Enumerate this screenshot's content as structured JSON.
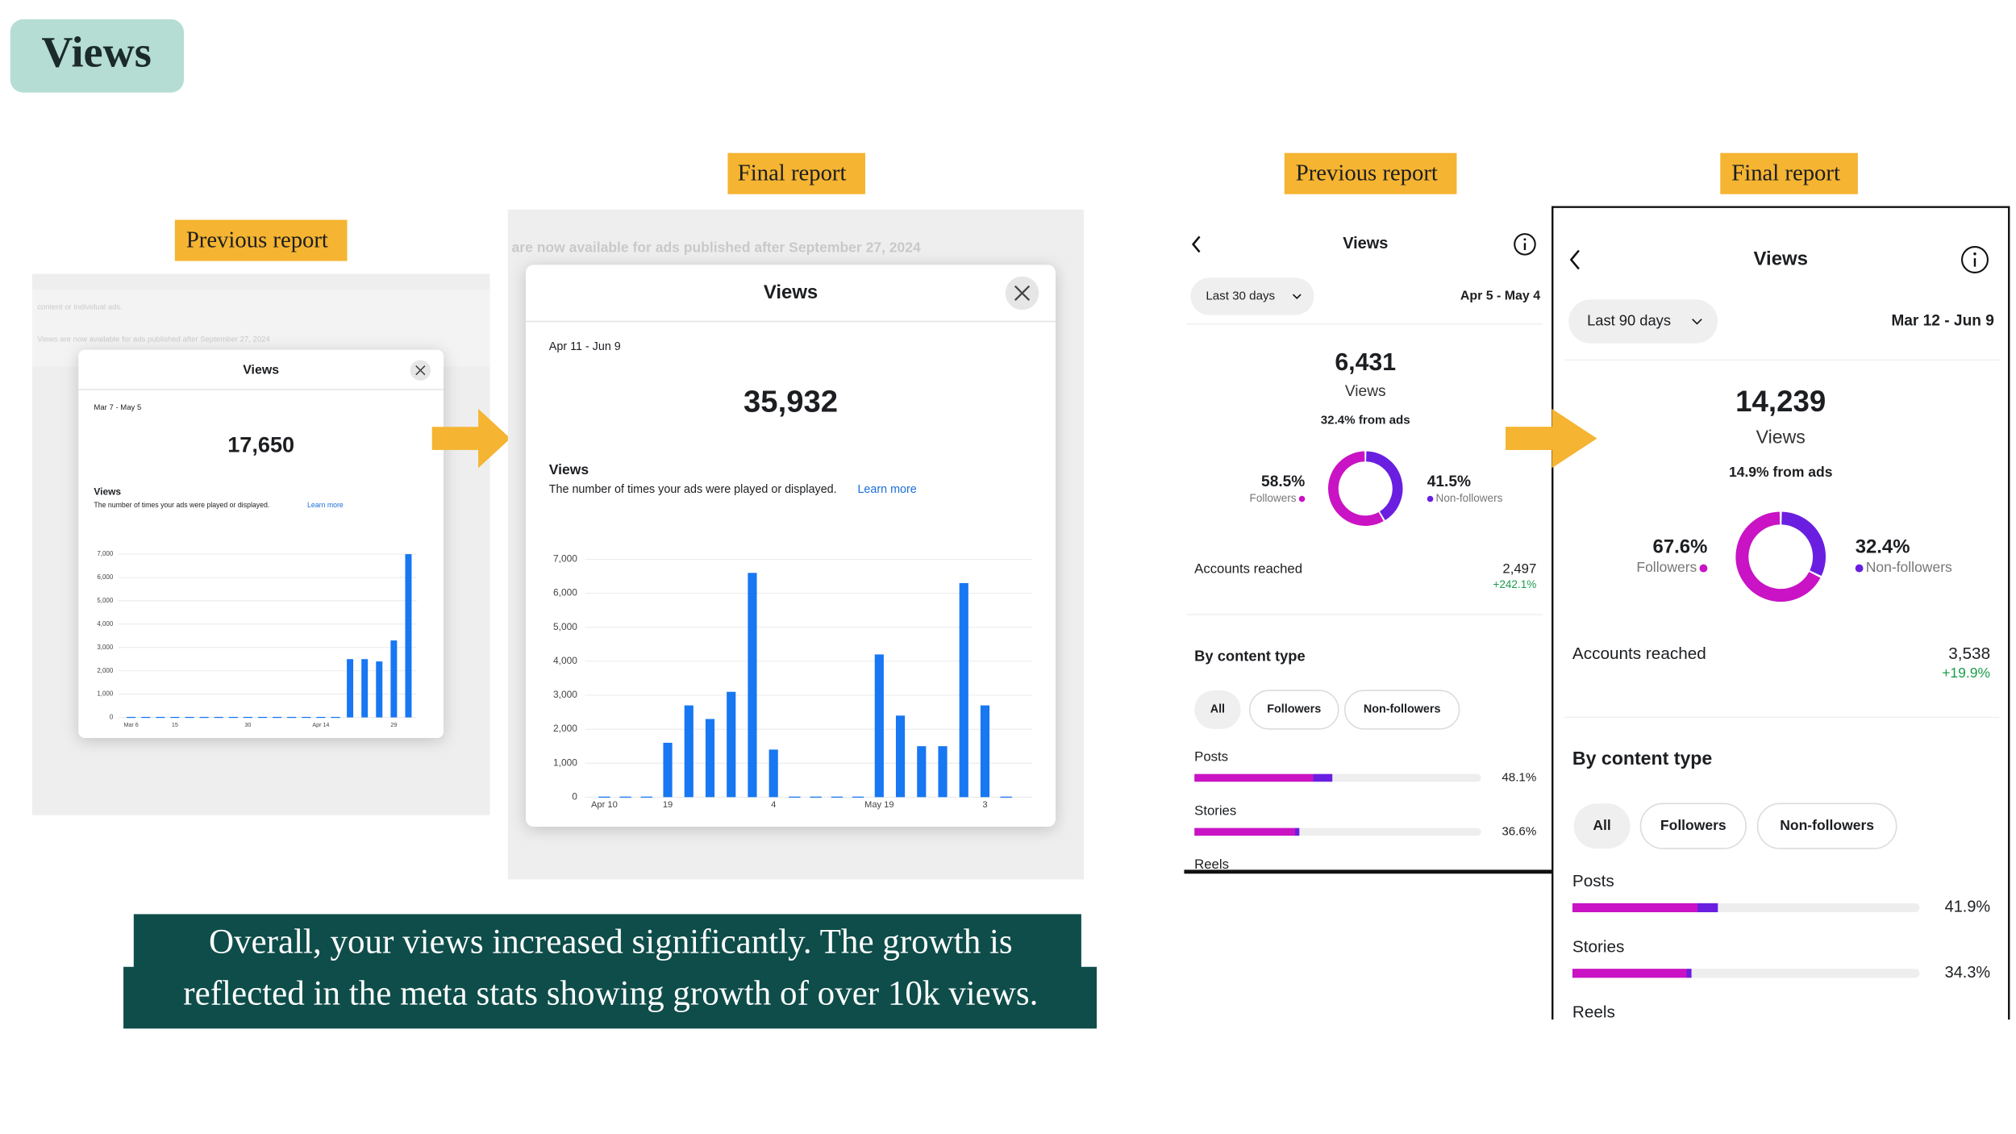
{
  "title": "Views",
  "labels": {
    "ads_previous": "Previous report",
    "ads_final": "Final report",
    "insights_previous": "Previous report",
    "insights_final": "Final report"
  },
  "ads_panels": [
    {
      "background_text": [
        "content or individual ads.",
        "Views are now available for ads published after September 27, 2024"
      ],
      "dialog": {
        "title": "Views",
        "date_range": "Mar 7 - May 5",
        "total": "17,650",
        "metric": "Views",
        "description": "The number of times your ads were played or displayed.",
        "link": "Learn more"
      },
      "chart_data": {
        "type": "bar",
        "categories": [
          "Mar 6",
          null,
          null,
          "15",
          null,
          null,
          null,
          null,
          "30",
          null,
          null,
          null,
          null,
          "Apr 14",
          null,
          null,
          null,
          null,
          "29",
          null
        ],
        "values": [
          0,
          0,
          0,
          0,
          0,
          0,
          0,
          0,
          0,
          0,
          0,
          0,
          0,
          0,
          0,
          2500,
          2500,
          2400,
          3300,
          7000
        ],
        "color": "#1877f2",
        "ylim": [
          0,
          7000
        ],
        "yticks": [
          0,
          {
            "value": 1000,
            "label": "1,000"
          },
          {
            "value": 2000,
            "label": "2,000"
          },
          {
            "value": 3000,
            "label": "3,000"
          },
          {
            "value": 4000,
            "label": "4,000"
          },
          {
            "value": 5000,
            "label": "5,000"
          },
          {
            "value": 6000,
            "label": "6,000"
          },
          {
            "value": 7000,
            "label": "7,000"
          }
        ],
        "grid": true
      }
    },
    {
      "background_text": [
        "are now available for ads published after September 27, 2024"
      ],
      "dialog": {
        "title": "Views",
        "date_range": "Apr 11 - Jun 9",
        "total": "35,932",
        "metric": "Views",
        "description": "The number of times your ads were played or displayed.",
        "link": "Learn more"
      },
      "chart_data": {
        "type": "bar",
        "categories": [
          "Apr 10",
          null,
          null,
          "19",
          null,
          null,
          null,
          null,
          "4",
          null,
          null,
          null,
          null,
          "May 19",
          null,
          null,
          null,
          null,
          "3",
          null
        ],
        "values": [
          0,
          0,
          0,
          1600,
          2700,
          2300,
          3100,
          6600,
          1400,
          0,
          0,
          0,
          0,
          4200,
          2400,
          1500,
          1500,
          6300,
          2700,
          0
        ],
        "color": "#1877f2",
        "ylim": [
          0,
          7000
        ],
        "yticks": [
          0,
          {
            "value": 1000,
            "label": "1,000"
          },
          {
            "value": 2000,
            "label": "2,000"
          },
          {
            "value": 3000,
            "label": "3,000"
          },
          {
            "value": 4000,
            "label": "4,000"
          },
          {
            "value": 5000,
            "label": "5,000"
          },
          {
            "value": 6000,
            "label": "6,000"
          },
          {
            "value": 7000,
            "label": "7,000"
          }
        ],
        "grid": true
      }
    }
  ],
  "insights": [
    {
      "header": "Views",
      "period": "Last 30 days",
      "dates": "Apr 5 - May 4",
      "total": "6,431",
      "total_label": "Views",
      "ads_share": "32.4% from ads",
      "accounts_reached": {
        "label": "Accounts reached",
        "value": "2,497",
        "change": "+242.1%"
      },
      "content_heading": "By content type",
      "filters": [
        "All",
        "Followers",
        "Non-followers"
      ],
      "chart_data": [
        {
          "type": "donut",
          "categories": [
            "Followers",
            "Non-followers"
          ],
          "values": [
            58.5,
            41.5
          ],
          "value_labels": [
            "58.5%",
            "41.5%"
          ],
          "colors": [
            "#c913c4",
            "#6a1fe0"
          ]
        },
        {
          "type": "hbar",
          "categories": [
            "Posts",
            "Stories",
            "Reels"
          ],
          "values": [
            48.1,
            36.6,
            null
          ],
          "value_labels": [
            "48.1%",
            "36.6%",
            null
          ],
          "xlim": [
            0,
            100
          ],
          "color": "#c913c4"
        }
      ]
    },
    {
      "header": "Views",
      "period": "Last 90 days",
      "dates": "Mar 12 - Jun 9",
      "total": "14,239",
      "total_label": "Views",
      "ads_share": "14.9% from ads",
      "accounts_reached": {
        "label": "Accounts reached",
        "value": "3,538",
        "change": "+19.9%"
      },
      "content_heading": "By content type",
      "filters": [
        "All",
        "Followers",
        "Non-followers"
      ],
      "chart_data": [
        {
          "type": "donut",
          "categories": [
            "Followers",
            "Non-followers"
          ],
          "values": [
            67.6,
            32.4
          ],
          "value_labels": [
            "67.6%",
            "32.4%"
          ],
          "colors": [
            "#c913c4",
            "#6a1fe0"
          ]
        },
        {
          "type": "hbar",
          "categories": [
            "Posts",
            "Stories",
            "Reels"
          ],
          "values": [
            41.9,
            34.3,
            null
          ],
          "value_labels": [
            "41.9%",
            "34.3%",
            null
          ],
          "xlim": [
            0,
            100
          ],
          "color": "#c913c4"
        }
      ]
    }
  ],
  "caption": [
    "Overall, your views increased significantly. The growth is",
    "reflected in the meta stats showing growth of over 10k views."
  ]
}
